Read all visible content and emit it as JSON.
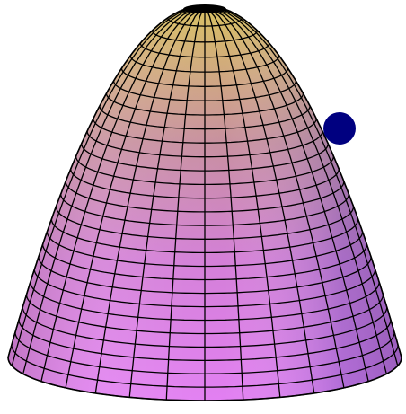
{
  "scene": {
    "object": "paraboloid-surface",
    "mesh": {
      "meridian_count": 32,
      "latitude_count": 28
    },
    "colors": {
      "background": "#ffffff",
      "wire": "#000000",
      "apex_tint": "#d8c060",
      "mid_tint": "#b67cae",
      "base_tint": "#e27ff2",
      "shadow_tint": "#6d64b4",
      "marker": "#000080"
    },
    "marker": {
      "shape": "filled-circle",
      "icon": "ball-marker-icon"
    }
  }
}
